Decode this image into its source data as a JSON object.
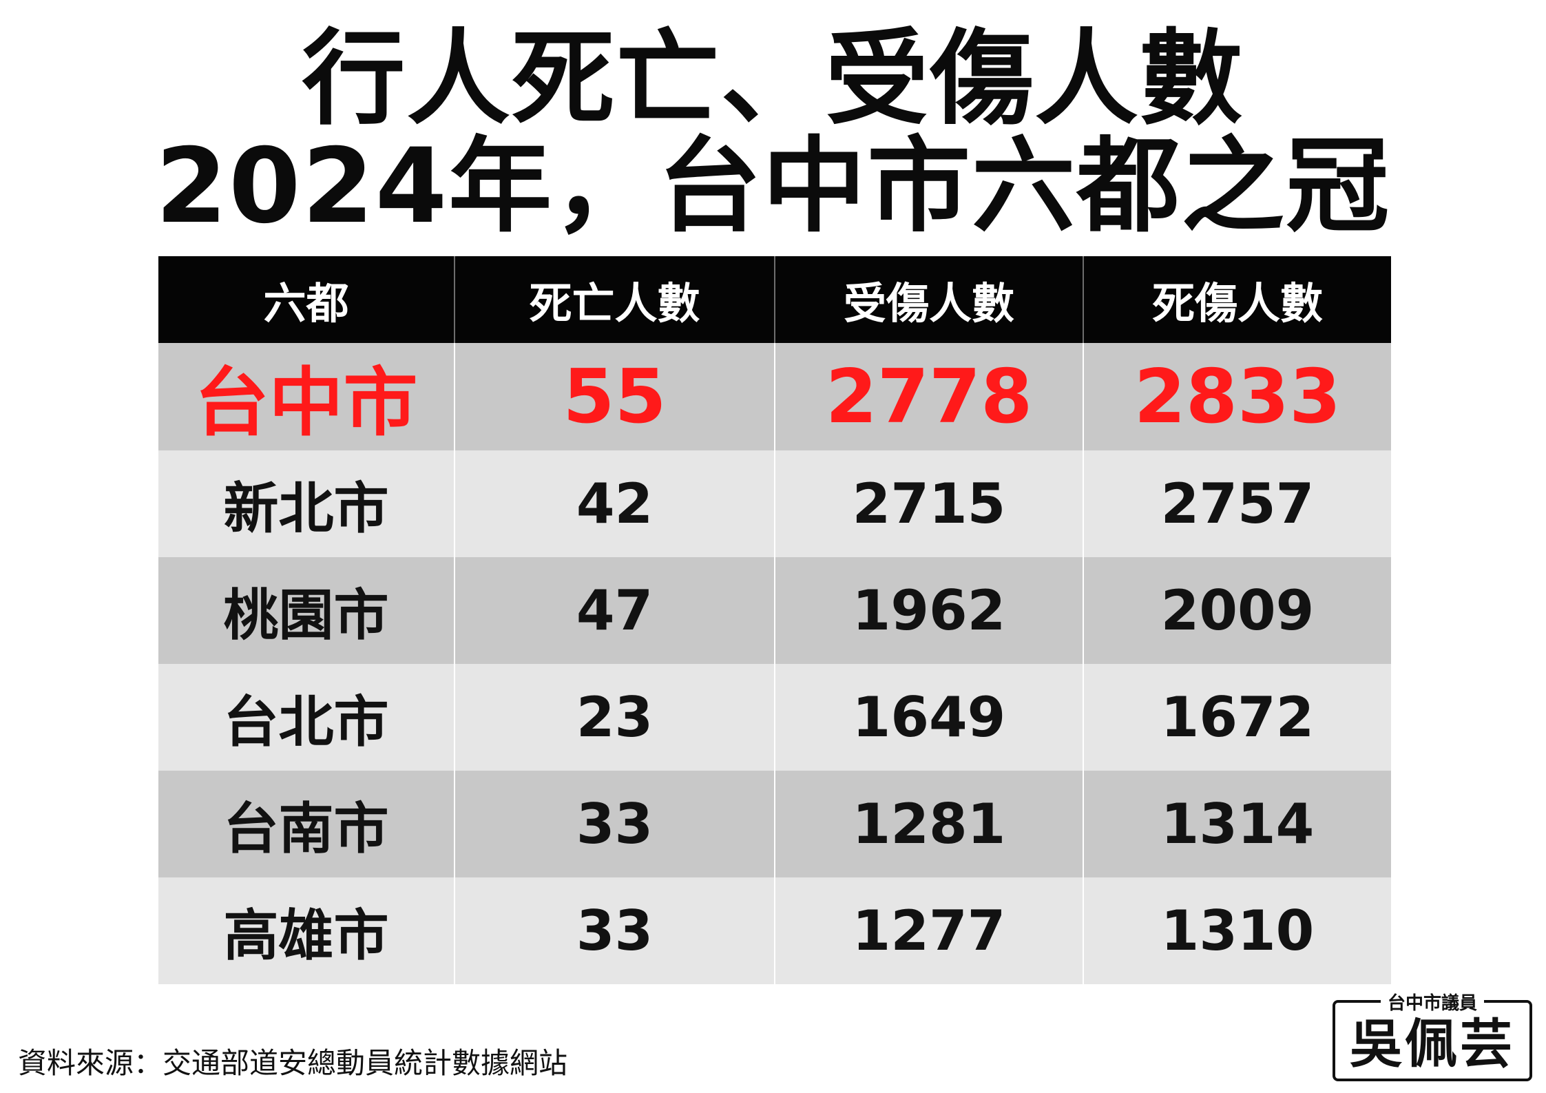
{
  "title": {
    "line1": "行人死亡、受傷人數",
    "line2": "2024年，台中市六都之冠"
  },
  "table": {
    "headers": [
      "六都",
      "死亡人數",
      "受傷人數",
      "死傷人數"
    ],
    "rows": [
      {
        "city": "台中市",
        "deaths": "55",
        "injuries": "2778",
        "casualties": "2833",
        "highlight": true
      },
      {
        "city": "新北市",
        "deaths": "42",
        "injuries": "2715",
        "casualties": "2757"
      },
      {
        "city": "桃園市",
        "deaths": "47",
        "injuries": "1962",
        "casualties": "2009"
      },
      {
        "city": "台北市",
        "deaths": "23",
        "injuries": "1649",
        "casualties": "1672"
      },
      {
        "city": "台南市",
        "deaths": "33",
        "injuries": "1281",
        "casualties": "1314"
      },
      {
        "city": "高雄市",
        "deaths": "33",
        "injuries": "1277",
        "casualties": "1310"
      }
    ]
  },
  "source": "資料來源：交通部道安總動員統計數據網站",
  "logo": {
    "subtitle": "台中市議員",
    "name": "吳佩芸"
  },
  "colors": {
    "highlight": "#ff1a1a",
    "header_bg": "#050505",
    "row_dark": "#c8c8c8",
    "row_light": "#e6e6e6"
  }
}
